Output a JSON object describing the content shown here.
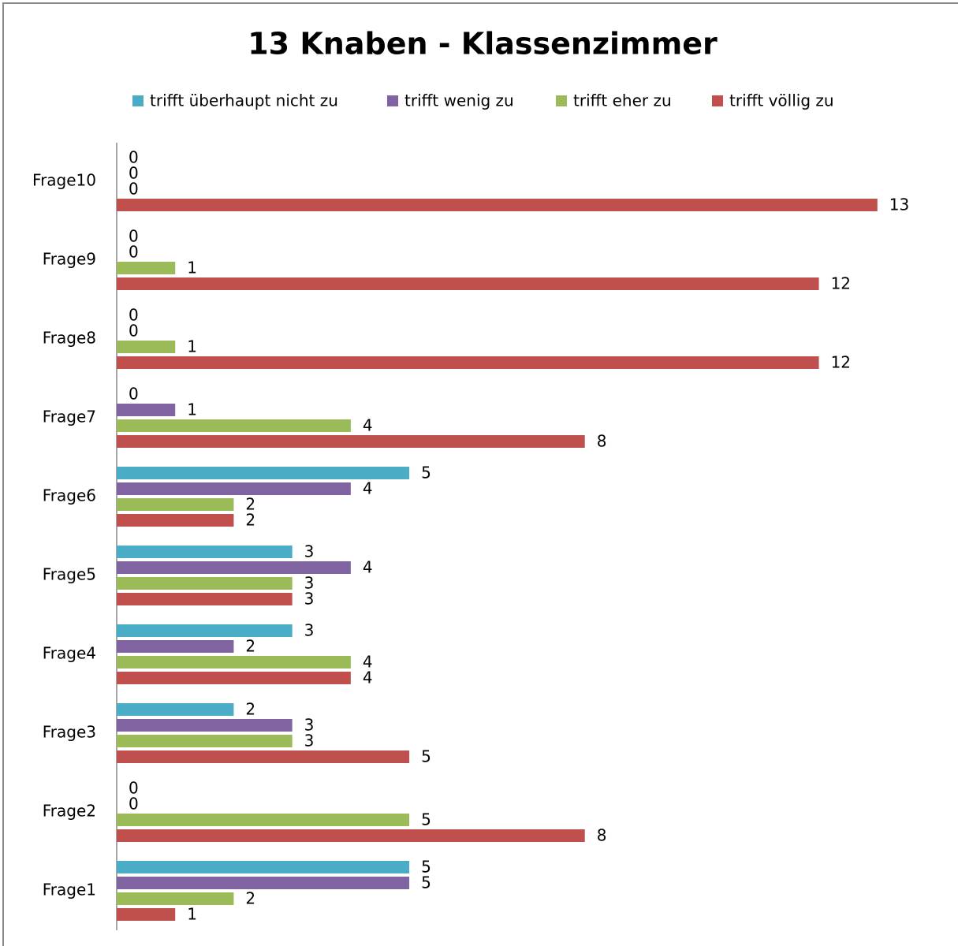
{
  "chart_data": {
    "type": "bar",
    "orientation": "horizontal",
    "title": "13 Knaben - Klassenzimmer",
    "categories": [
      "Frage1",
      "Frage2",
      "Frage3",
      "Frage4",
      "Frage5",
      "Frage6",
      "Frage7",
      "Frage8",
      "Frage9",
      "Frage10"
    ],
    "series": [
      {
        "name": "trifft überhaupt nicht zu",
        "color": "#4bacc6",
        "values": [
          5,
          0,
          2,
          3,
          3,
          5,
          0,
          0,
          0,
          0
        ]
      },
      {
        "name": "trifft wenig zu",
        "color": "#8064a2",
        "values": [
          5,
          0,
          3,
          2,
          4,
          4,
          1,
          0,
          0,
          0
        ]
      },
      {
        "name": "trifft eher zu",
        "color": "#9bbb59",
        "values": [
          2,
          5,
          3,
          4,
          3,
          2,
          4,
          1,
          1,
          0
        ]
      },
      {
        "name": "trifft völlig zu",
        "color": "#c0504d",
        "values": [
          1,
          8,
          5,
          4,
          3,
          2,
          8,
          12,
          12,
          13
        ]
      }
    ],
    "xlim": [
      0,
      14
    ],
    "legend": "top",
    "data_labels": true
  }
}
